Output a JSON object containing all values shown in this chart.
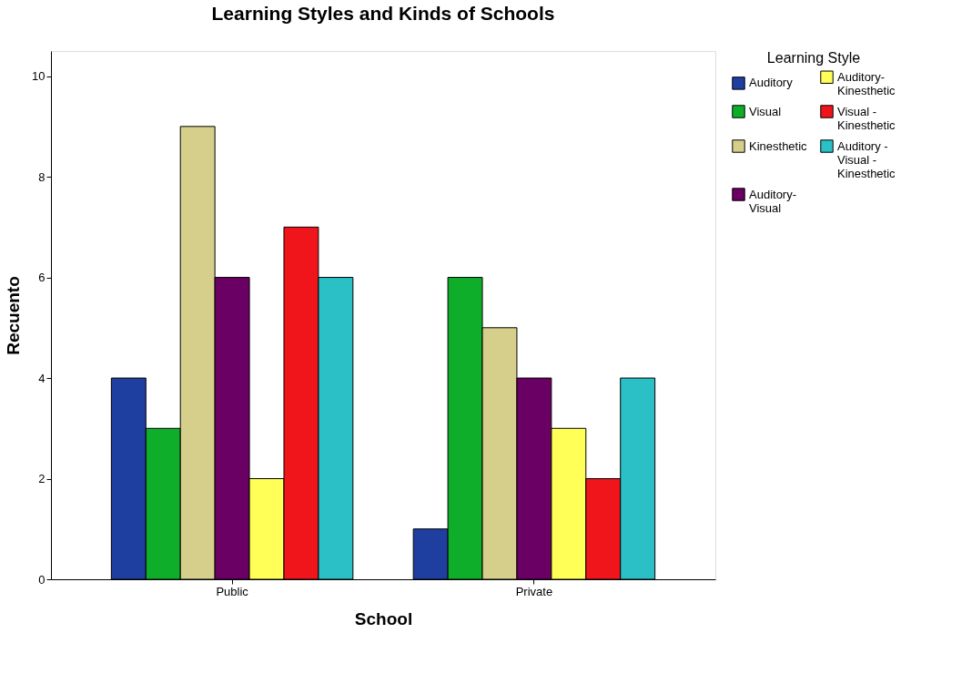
{
  "chart_data": {
    "type": "bar",
    "title": "Learning Styles and Kinds of Schools",
    "xlabel": "School",
    "ylabel": "Recuento",
    "legend_title": "Learning Style",
    "categories": [
      "Public",
      "Private"
    ],
    "series": [
      {
        "name": "Auditory",
        "color": "#1f3fa0",
        "values": [
          4,
          1
        ]
      },
      {
        "name": "Visual",
        "color": "#0fae2a",
        "values": [
          3,
          6
        ]
      },
      {
        "name": "Kinesthetic",
        "color": "#d6cf8c",
        "values": [
          9,
          5
        ]
      },
      {
        "name": "Auditory-Visual",
        "color": "#6a0064",
        "values": [
          6,
          4
        ]
      },
      {
        "name": "Auditory-Kinesthetic",
        "color": "#ffff57",
        "values": [
          2,
          3
        ]
      },
      {
        "name": "Visual - Kinesthetic",
        "color": "#f0141b",
        "values": [
          7,
          2
        ]
      },
      {
        "name": "Auditory - Visual - Kinesthetic",
        "color": "#2bbfc6",
        "values": [
          6,
          4
        ]
      }
    ],
    "ylim": [
      0,
      10.5
    ],
    "yticks": [
      0,
      2,
      4,
      6,
      8,
      10
    ],
    "grid": false,
    "legend": "top right"
  }
}
